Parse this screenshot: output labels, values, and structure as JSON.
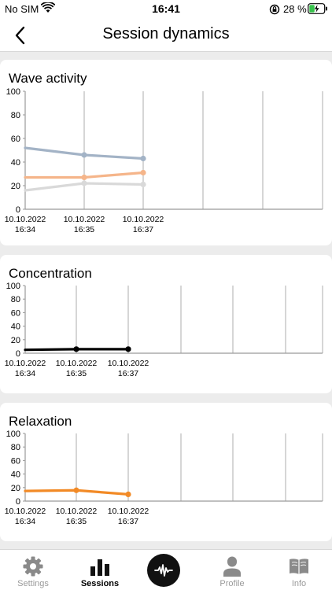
{
  "status_bar": {
    "carrier": "No SIM",
    "time": "16:41",
    "battery_percent": "28 %",
    "icons": [
      "wifi-icon",
      "orientation-lock-icon",
      "battery-charging-icon"
    ]
  },
  "nav": {
    "title": "Session dynamics",
    "back_icon": "chevron-left-icon"
  },
  "tabs": [
    {
      "label": "Settings",
      "icon": "gear-icon",
      "active": false
    },
    {
      "label": "Sessions",
      "icon": "bar-chart-icon",
      "active": true
    },
    {
      "label": "",
      "icon": "pulse-icon",
      "active": false
    },
    {
      "label": "Profile",
      "icon": "person-icon",
      "active": false
    },
    {
      "label": "Info",
      "icon": "book-icon",
      "active": false
    }
  ],
  "colors": {
    "wave_blue": "#a3b3c6",
    "wave_peach": "#f5b58a",
    "wave_grey": "#d9d9d9",
    "concentration": "#000000",
    "relaxation": "#f28a26",
    "grid": "#9a9a9a"
  },
  "chart_data": [
    {
      "type": "line",
      "title": "Wave activity",
      "x": [
        "10.10.2022 16:34",
        "10.10.2022 16:35",
        "10.10.2022 16:37"
      ],
      "x_tick_labels": [
        [
          "10.10.2022",
          "16:34"
        ],
        [
          "10.10.2022",
          "16:35"
        ],
        [
          "10.10.2022",
          "16:37"
        ]
      ],
      "ylim": [
        0,
        100
      ],
      "y_ticks": [
        0,
        20,
        40,
        60,
        80,
        100
      ],
      "series": [
        {
          "color": "#a3b3c6",
          "values": [
            52,
            46,
            43
          ],
          "first_point_marker": false
        },
        {
          "color": "#f5b58a",
          "values": [
            27,
            27,
            31
          ],
          "first_point_marker": false
        },
        {
          "color": "#d9d9d9",
          "values": [
            16,
            22,
            21
          ],
          "first_point_marker": false
        }
      ],
      "grid": true
    },
    {
      "type": "line",
      "title": "Concentration",
      "x": [
        "10.10.2022 16:34",
        "10.10.2022 16:35",
        "10.10.2022 16:37"
      ],
      "x_tick_labels": [
        [
          "10.10.2022",
          "16:34"
        ],
        [
          "10.10.2022",
          "16:35"
        ],
        [
          "10.10.2022",
          "16:37"
        ]
      ],
      "ylim": [
        0,
        100
      ],
      "y_ticks": [
        0,
        20,
        40,
        60,
        80,
        100
      ],
      "series": [
        {
          "color": "#000000",
          "values": [
            5,
            6,
            6
          ],
          "first_point_marker": false
        }
      ],
      "grid": true
    },
    {
      "type": "line",
      "title": "Relaxation",
      "x": [
        "10.10.2022 16:34",
        "10.10.2022 16:35",
        "10.10.2022 16:37"
      ],
      "x_tick_labels": [
        [
          "10.10.2022",
          "16:34"
        ],
        [
          "10.10.2022",
          "16:35"
        ],
        [
          "10.10.2022",
          "16:37"
        ]
      ],
      "ylim": [
        0,
        100
      ],
      "y_ticks": [
        0,
        20,
        40,
        60,
        80,
        100
      ],
      "series": [
        {
          "color": "#f28a26",
          "values": [
            15,
            16,
            10
          ],
          "first_point_marker": false
        }
      ],
      "grid": true
    }
  ]
}
